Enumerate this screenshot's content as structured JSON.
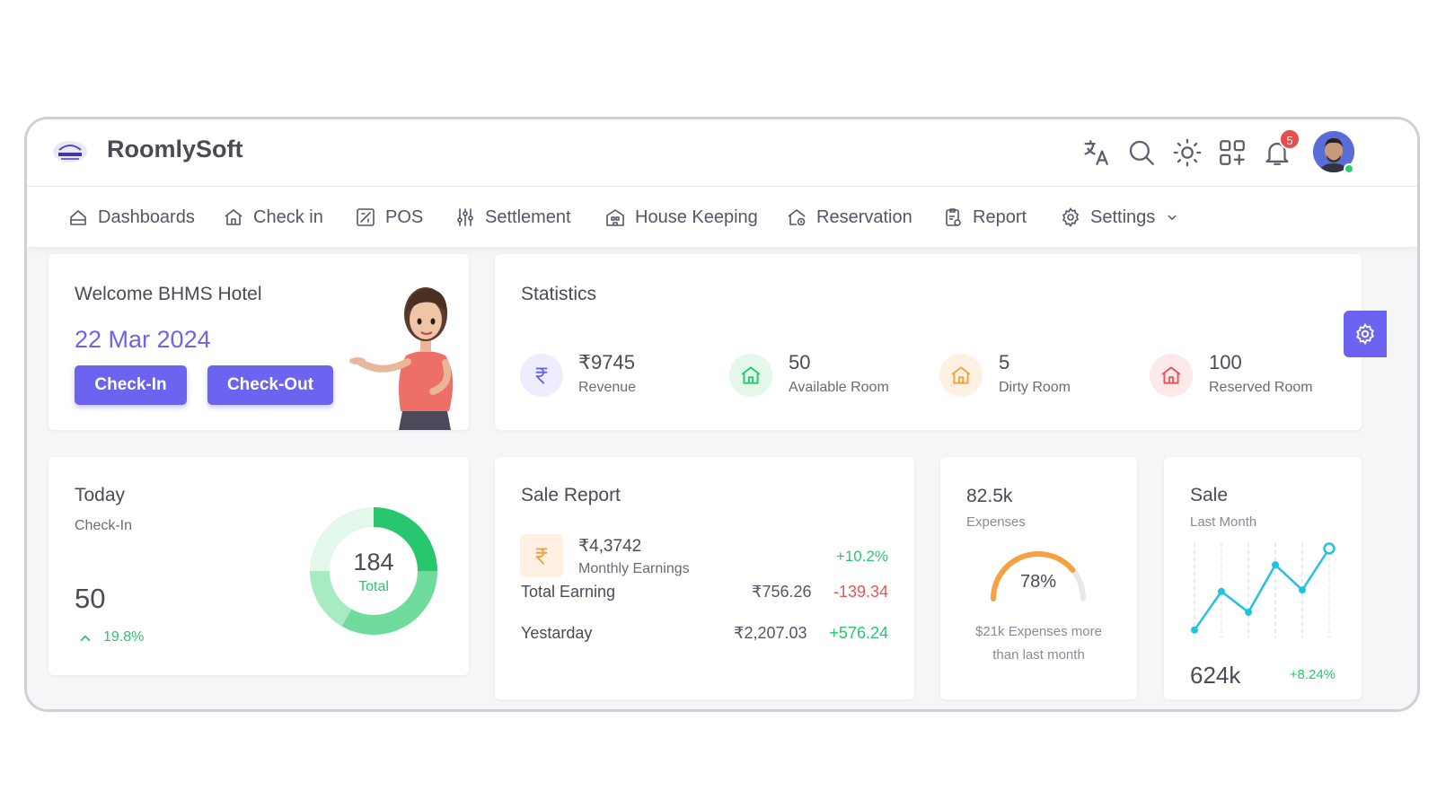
{
  "app": {
    "brand": "RoomlySoft"
  },
  "topbar": {
    "icons": [
      "translate-icon",
      "search-icon",
      "sun-icon",
      "apps-grid-icon",
      "bell-icon"
    ],
    "notification_count": "5"
  },
  "nav": {
    "items": [
      {
        "label": "Dashboards",
        "icon": "dashboard-icon"
      },
      {
        "label": "Check in",
        "icon": "home-icon"
      },
      {
        "label": "POS",
        "icon": "pos-icon"
      },
      {
        "label": "Settlement",
        "icon": "sliders-icon"
      },
      {
        "label": "House Keeping",
        "icon": "building-icon"
      },
      {
        "label": "Reservation",
        "icon": "home-clock-icon"
      },
      {
        "label": "Report",
        "icon": "report-icon"
      },
      {
        "label": "Settings",
        "icon": "gear-icon"
      }
    ]
  },
  "welcome": {
    "title": "Welcome BHMS Hotel",
    "date": "22 Mar 2024",
    "checkin_label": "Check-In",
    "checkout_label": "Check-Out"
  },
  "statistics": {
    "title": "Statistics",
    "items": [
      {
        "value": "₹9745",
        "label": "Revenue",
        "color": "#6c63f0",
        "bg": "#eeedfd"
      },
      {
        "value": "50",
        "label": "Available Room",
        "color": "#2ecc71",
        "bg": "#e3f8ea"
      },
      {
        "value": "5",
        "label": "Dirty Room",
        "color": "#f5a142",
        "bg": "#fef1e2"
      },
      {
        "value": "100",
        "label": "Reserved Room",
        "color": "#ea5454",
        "bg": "#fde9e9"
      }
    ]
  },
  "today": {
    "title": "Today",
    "subtitle": "Check-In",
    "value": "50",
    "change": "19.8%",
    "donut_total": "184",
    "donut_label": "Total"
  },
  "sale_report": {
    "title": "Sale Report",
    "monthly_value": "₹4,3742",
    "monthly_label": "Monthly Earnings",
    "monthly_change": "+10.2%",
    "rows": [
      {
        "label": "Total Earning",
        "amount": "₹756.26",
        "change": "-139.34"
      },
      {
        "label": "Yestarday",
        "amount": "₹2,207.03",
        "change": "+576.24"
      }
    ]
  },
  "expenses": {
    "value": "82.5k",
    "label": "Expenses",
    "gauge_percent": "78%",
    "gauge_fraction": 0.78,
    "note_line1": "$21k Expenses more",
    "note_line2": "than last month"
  },
  "sale": {
    "title": "Sale",
    "subtitle": "Last Month",
    "value": "624k",
    "change": "+8.24%",
    "series": [
      2,
      28,
      14,
      46,
      29,
      57
    ]
  },
  "colors": {
    "accent": "#6c63f0",
    "green": "#28c76f",
    "red": "#ea5454",
    "orange": "#f5a142",
    "cyan": "#1fc4e0"
  }
}
